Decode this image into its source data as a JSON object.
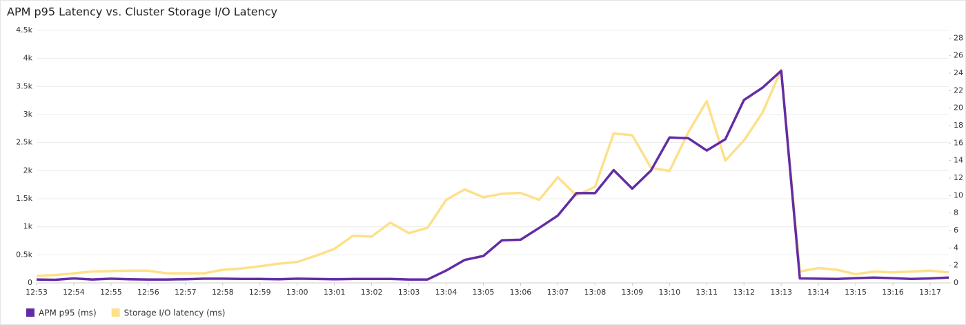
{
  "chart_data": {
    "type": "line",
    "title": "APM p95 Latency vs. Cluster Storage I/O Latency",
    "categories": [
      "12:53",
      null,
      "12:54",
      null,
      "12:55",
      null,
      "12:56",
      null,
      "12:57",
      null,
      "12:58",
      null,
      "12:59",
      null,
      "13:00",
      null,
      "13:01",
      null,
      "13:02",
      null,
      "13:03",
      null,
      "13:04",
      null,
      "13:05",
      null,
      "13:06",
      null,
      "13:07",
      null,
      "13:08",
      null,
      "13:09",
      null,
      "13:10",
      null,
      "13:11",
      null,
      "13:12",
      null,
      "13:13",
      null,
      "13:14",
      null,
      "13:15",
      null,
      "13:16",
      null,
      "13:17",
      null
    ],
    "series": [
      {
        "name": "APM p95 (ms)",
        "color": "#632ca6",
        "values": [
          60,
          55,
          80,
          60,
          75,
          65,
          60,
          60,
          65,
          75,
          75,
          70,
          70,
          65,
          75,
          70,
          65,
          70,
          70,
          70,
          60,
          60,
          220,
          410,
          480,
          760,
          770,
          980,
          1200,
          1600,
          1600,
          2010,
          1680,
          2000,
          2590,
          2580,
          2360,
          2560,
          3260,
          3480,
          3780,
          80,
          75,
          70,
          85,
          95,
          85,
          70,
          80,
          95
        ]
      },
      {
        "name": "Storage I/O latency (ms)",
        "color": "#fde08a",
        "axis": "y2",
        "values": [
          0.8,
          0.9,
          1.1,
          1.3,
          1.35,
          1.4,
          1.4,
          1.1,
          1.1,
          1.1,
          1.5,
          1.65,
          1.9,
          2.2,
          2.4,
          3.1,
          3.9,
          5.4,
          5.3,
          6.9,
          5.7,
          6.3,
          9.5,
          10.7,
          9.8,
          10.2,
          10.3,
          9.5,
          12.1,
          10.0,
          11.0,
          17.1,
          16.9,
          13.2,
          12.8,
          17.2,
          20.8,
          14.0,
          16.3,
          19.5,
          24.4,
          1.3,
          1.7,
          1.5,
          1.0,
          1.3,
          1.2,
          1.3,
          1.4,
          1.2
        ]
      }
    ],
    "ylim": [
      0,
      4500
    ],
    "yticks": [
      0,
      {
        "value": 500,
        "label": "0.5k"
      },
      {
        "value": 1000,
        "label": "1k"
      },
      {
        "value": 1500,
        "label": "1.5k"
      },
      {
        "value": 2000,
        "label": "2k"
      },
      {
        "value": 2500,
        "label": "2.5k"
      },
      {
        "value": 3000,
        "label": "3k"
      },
      {
        "value": 3500,
        "label": "3.5k"
      },
      {
        "value": 4000,
        "label": "4k"
      },
      {
        "value": 4500,
        "label": "4.5k"
      }
    ],
    "y2lim": [
      0,
      28.9
    ],
    "y2ticks": [
      0,
      2,
      4,
      6,
      8,
      10,
      12,
      14,
      16,
      18,
      20,
      22,
      24,
      26,
      28
    ],
    "grid": true,
    "legend": "bottom-left"
  }
}
